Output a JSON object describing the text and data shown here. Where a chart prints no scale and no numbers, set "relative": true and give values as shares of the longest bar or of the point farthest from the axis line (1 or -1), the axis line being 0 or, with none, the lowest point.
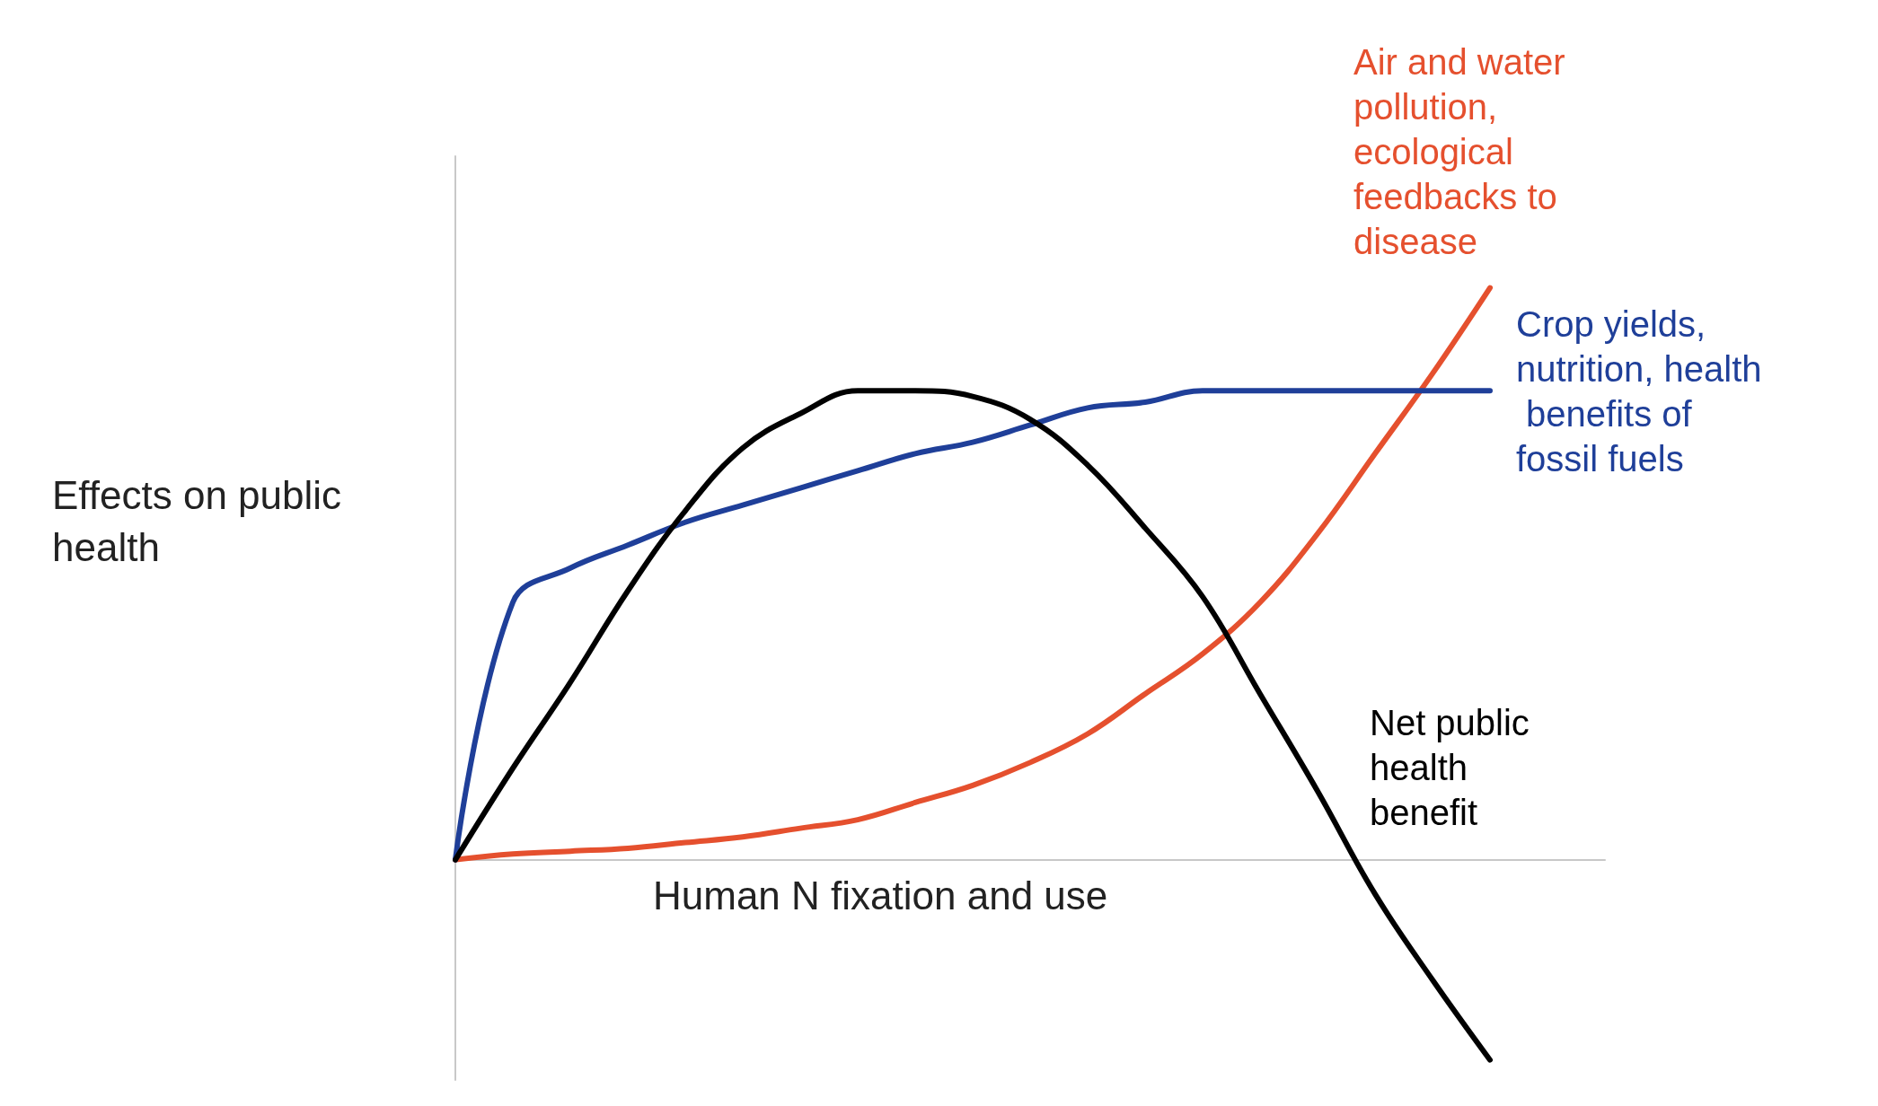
{
  "chart_data": {
    "type": "line",
    "relative": true,
    "xlabel": "Human N fixation and use",
    "ylabel": "Effects on public health",
    "categories": [
      null,
      null,
      null,
      null,
      null,
      null,
      null,
      null,
      null,
      null,
      null,
      null,
      null,
      null,
      null,
      null,
      null,
      null,
      null,
      null,
      null
    ],
    "grid": false,
    "legend": false,
    "marker": "none",
    "line_style": "solid",
    "series": [
      {
        "name": "Air and water pollution, ecological feedbacks to disease",
        "color": "#e5502e",
        "values": [
          0,
          0.01,
          0.015,
          0.02,
          0.03,
          0.04,
          0.055,
          0.07,
          0.1,
          0.13,
          0.17,
          0.22,
          0.29,
          0.36,
          0.45,
          0.57,
          0.71,
          0.85,
          1,
          null,
          null
        ]
      },
      {
        "name": "Crop yields, nutrition, health benefits of fossil fuels",
        "color": "#1f3f99",
        "values": [
          0,
          0.45,
          0.51,
          0.55,
          0.59,
          0.62,
          0.65,
          0.68,
          0.71,
          0.73,
          0.76,
          0.79,
          0.8,
          0.82,
          0.82,
          0.82,
          0.82,
          0.82,
          0.82,
          null,
          null
        ]
      },
      {
        "name": "Net public health benefit",
        "color": "#000000",
        "values": [
          0,
          0.16,
          0.31,
          0.47,
          0.61,
          0.72,
          0.78,
          0.82,
          0.82,
          0.81,
          0.77,
          0.69,
          0.58,
          0.46,
          0.29,
          0.12,
          -0.06,
          -0.21,
          -0.35,
          null,
          null
        ]
      }
    ]
  }
}
